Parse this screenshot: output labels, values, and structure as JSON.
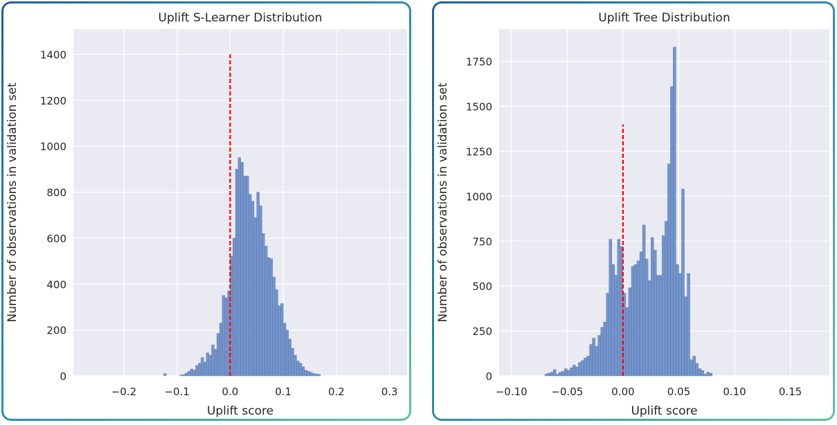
{
  "theme": {
    "plot_bg": "#eaeaf2",
    "grid": "#ffffff",
    "bar_fill": "#6f8fc7",
    "bar_edge": "#4c72b0",
    "ref_line": "#ff0000",
    "border_start": "#1f5f9a",
    "border_end": "#5cc3a0"
  },
  "chart_data": [
    {
      "type": "histogram",
      "title": "Uplift S-Learner Distribution",
      "xlabel": "Uplift score",
      "ylabel": "Number of observations in validation set",
      "xlim": [
        -0.295,
        0.333
      ],
      "ylim": [
        0,
        1510
      ],
      "xticks": [
        -0.2,
        -0.1,
        0.0,
        0.1,
        0.2,
        0.3
      ],
      "xtick_labels": [
        "−0.2",
        "−0.1",
        "0.0",
        "0.1",
        "0.2",
        "0.3"
      ],
      "yticks": [
        0,
        200,
        400,
        600,
        800,
        1000,
        1200,
        1400
      ],
      "ytick_labels": [
        "0",
        "200",
        "400",
        "600",
        "800",
        "1000",
        "1200",
        "1400"
      ],
      "grid": true,
      "bin_width": 0.005,
      "bins": [
        [
          -0.125,
          10
        ],
        [
          -0.095,
          3
        ],
        [
          -0.09,
          5
        ],
        [
          -0.085,
          12
        ],
        [
          -0.08,
          20
        ],
        [
          -0.075,
          30
        ],
        [
          -0.07,
          25
        ],
        [
          -0.065,
          45
        ],
        [
          -0.06,
          55
        ],
        [
          -0.055,
          80
        ],
        [
          -0.05,
          60
        ],
        [
          -0.045,
          100
        ],
        [
          -0.04,
          90
        ],
        [
          -0.035,
          135
        ],
        [
          -0.03,
          115
        ],
        [
          -0.025,
          185
        ],
        [
          -0.02,
          230
        ],
        [
          -0.015,
          350
        ],
        [
          -0.01,
          340
        ],
        [
          -0.005,
          370
        ],
        [
          0.0,
          520
        ],
        [
          0.005,
          600
        ],
        [
          0.01,
          900
        ],
        [
          0.015,
          950
        ],
        [
          0.02,
          930
        ],
        [
          0.025,
          870
        ],
        [
          0.03,
          870
        ],
        [
          0.035,
          790
        ],
        [
          0.04,
          760
        ],
        [
          0.045,
          690
        ],
        [
          0.05,
          800
        ],
        [
          0.055,
          740
        ],
        [
          0.06,
          620
        ],
        [
          0.065,
          565
        ],
        [
          0.07,
          515
        ],
        [
          0.075,
          510
        ],
        [
          0.08,
          430
        ],
        [
          0.085,
          375
        ],
        [
          0.09,
          305
        ],
        [
          0.095,
          315
        ],
        [
          0.1,
          230
        ],
        [
          0.105,
          200
        ],
        [
          0.11,
          160
        ],
        [
          0.115,
          120
        ],
        [
          0.12,
          90
        ],
        [
          0.125,
          65
        ],
        [
          0.13,
          55
        ],
        [
          0.135,
          40
        ],
        [
          0.14,
          25
        ],
        [
          0.145,
          20
        ],
        [
          0.15,
          15
        ],
        [
          0.155,
          10
        ],
        [
          0.16,
          8
        ],
        [
          0.165,
          6
        ]
      ],
      "ref_line": {
        "x": 0.0,
        "y_top": 1400
      }
    },
    {
      "type": "histogram",
      "title": "Uplift Tree Distribution",
      "xlabel": "Uplift score",
      "ylabel": "Number of observations in validation set",
      "xlim": [
        -0.111,
        0.185
      ],
      "ylim": [
        0,
        1930
      ],
      "xticks": [
        -0.1,
        -0.05,
        0.0,
        0.05,
        0.1,
        0.15
      ],
      "xtick_labels": [
        "−0.10",
        "−0.05",
        "0.00",
        "0.05",
        "0.10",
        "0.15"
      ],
      "yticks": [
        0,
        250,
        500,
        750,
        1000,
        1250,
        1500,
        1750
      ],
      "ytick_labels": [
        "0",
        "250",
        "500",
        "750",
        "1000",
        "1250",
        "1500",
        "1750"
      ],
      "grid": true,
      "bin_width": 0.0025,
      "bins": [
        [
          -0.07,
          10
        ],
        [
          -0.0675,
          15
        ],
        [
          -0.065,
          20
        ],
        [
          -0.0625,
          35
        ],
        [
          -0.06,
          10
        ],
        [
          -0.0575,
          20
        ],
        [
          -0.055,
          25
        ],
        [
          -0.0525,
          40
        ],
        [
          -0.05,
          30
        ],
        [
          -0.0475,
          45
        ],
        [
          -0.045,
          60
        ],
        [
          -0.0425,
          50
        ],
        [
          -0.04,
          75
        ],
        [
          -0.0375,
          85
        ],
        [
          -0.035,
          100
        ],
        [
          -0.0325,
          110
        ],
        [
          -0.03,
          175
        ],
        [
          -0.0275,
          210
        ],
        [
          -0.025,
          165
        ],
        [
          -0.0225,
          225
        ],
        [
          -0.02,
          270
        ],
        [
          -0.0175,
          300
        ],
        [
          -0.015,
          460
        ],
        [
          -0.0125,
          760
        ],
        [
          -0.01,
          620
        ],
        [
          -0.0075,
          560
        ],
        [
          -0.005,
          760
        ],
        [
          -0.0025,
          720
        ],
        [
          0.0,
          460
        ],
        [
          0.0025,
          380
        ],
        [
          0.005,
          490
        ],
        [
          0.0075,
          610
        ],
        [
          0.01,
          620
        ],
        [
          0.0125,
          640
        ],
        [
          0.015,
          690
        ],
        [
          0.0175,
          840
        ],
        [
          0.02,
          650
        ],
        [
          0.0225,
          530
        ],
        [
          0.025,
          770
        ],
        [
          0.0275,
          700
        ],
        [
          0.03,
          560
        ],
        [
          0.0325,
          560
        ],
        [
          0.035,
          780
        ],
        [
          0.0375,
          860
        ],
        [
          0.04,
          1180
        ],
        [
          0.0425,
          1610
        ],
        [
          0.045,
          1830
        ],
        [
          0.0475,
          620
        ],
        [
          0.05,
          570
        ],
        [
          0.0525,
          1040
        ],
        [
          0.055,
          440
        ],
        [
          0.0575,
          570
        ],
        [
          0.06,
          90
        ],
        [
          0.0625,
          110
        ],
        [
          0.065,
          70
        ],
        [
          0.0675,
          40
        ],
        [
          0.07,
          30
        ],
        [
          0.0725,
          10
        ],
        [
          0.075,
          20
        ],
        [
          0.0775,
          15
        ]
      ],
      "ref_line": {
        "x": 0.0,
        "y_top": 1400
      }
    }
  ]
}
